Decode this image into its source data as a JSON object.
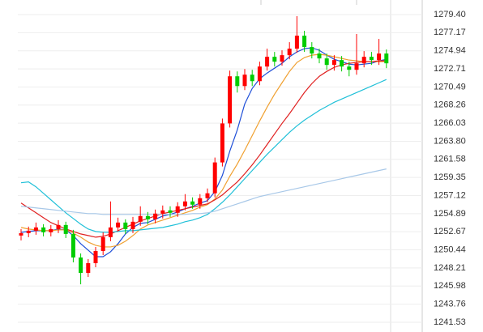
{
  "chart_data": {
    "type": "candlestick",
    "up_color": "#ff0000",
    "down_color": "#00cc00",
    "open": [
      1252.2,
      1252.5,
      1252.8,
      1253.2,
      1252.6,
      1253.0,
      1253.5,
      1252.4,
      1249.5,
      1247.6,
      1248.8,
      1250.3,
      1252.0,
      1253.2,
      1253.8,
      1253.0,
      1253.9,
      1254.6,
      1254.2,
      1254.9,
      1255.3,
      1255.0,
      1255.8,
      1256.4,
      1256.0,
      1256.8,
      1257.4,
      1261.2,
      1266.0,
      1271.8,
      1270.6,
      1272.0,
      1271.2,
      1273.0,
      1274.2,
      1273.6,
      1274.4,
      1275.2,
      1276.8,
      1275.4,
      1274.6,
      1274.0,
      1273.2,
      1273.8,
      1273.0,
      1272.6,
      1273.4,
      1274.2,
      1273.8,
      1274.6
    ],
    "high": [
      1253.0,
      1253.3,
      1253.8,
      1253.6,
      1253.5,
      1254.1,
      1253.9,
      1252.9,
      1250.0,
      1249.3,
      1250.8,
      1252.6,
      1256.4,
      1254.4,
      1254.2,
      1254.5,
      1255.8,
      1255.1,
      1255.4,
      1255.9,
      1255.8,
      1256.3,
      1257.3,
      1256.9,
      1257.3,
      1258.0,
      1261.8,
      1266.6,
      1272.5,
      1272.4,
      1272.7,
      1272.6,
      1273.6,
      1275.2,
      1274.8,
      1275.0,
      1276.0,
      1279.2,
      1277.4,
      1276.0,
      1275.2,
      1274.6,
      1274.4,
      1274.3,
      1273.6,
      1277.0,
      1274.9,
      1274.8,
      1276.4,
      1275.1
    ],
    "low": [
      1251.6,
      1252.0,
      1252.3,
      1252.1,
      1252.1,
      1252.5,
      1251.9,
      1248.9,
      1246.2,
      1247.1,
      1248.3,
      1249.8,
      1251.5,
      1252.7,
      1252.4,
      1252.5,
      1253.4,
      1253.6,
      1253.7,
      1254.3,
      1254.5,
      1254.5,
      1255.3,
      1255.5,
      1255.5,
      1256.3,
      1256.9,
      1260.7,
      1265.5,
      1269.8,
      1270.1,
      1270.6,
      1270.7,
      1272.5,
      1273.0,
      1273.1,
      1273.9,
      1274.7,
      1274.8,
      1274.0,
      1273.4,
      1272.6,
      1272.5,
      1272.4,
      1271.8,
      1272.0,
      1272.9,
      1273.2,
      1273.2,
      1272.8
    ],
    "close": [
      1252.5,
      1252.8,
      1253.2,
      1252.6,
      1253.0,
      1253.5,
      1252.4,
      1249.5,
      1247.6,
      1248.8,
      1250.3,
      1252.0,
      1253.2,
      1253.8,
      1253.0,
      1253.9,
      1254.6,
      1254.2,
      1254.9,
      1255.3,
      1255.0,
      1255.8,
      1256.4,
      1256.0,
      1256.8,
      1257.4,
      1261.2,
      1266.0,
      1271.8,
      1270.6,
      1272.0,
      1271.2,
      1273.0,
      1274.2,
      1273.6,
      1274.4,
      1275.2,
      1276.8,
      1275.4,
      1274.6,
      1274.0,
      1273.2,
      1273.8,
      1273.0,
      1272.6,
      1273.4,
      1274.2,
      1273.8,
      1274.6,
      1273.4
    ],
    "series": [
      {
        "color": "#1f4fd8",
        "values": [
          1252.6,
          1252.7,
          1252.8,
          1252.8,
          1252.8,
          1253.0,
          1252.9,
          1252.2,
          1251.2,
          1250.4,
          1249.6,
          1249.6,
          1250.2,
          1251.2,
          1252.4,
          1253.2,
          1253.7,
          1253.8,
          1254.2,
          1254.6,
          1254.8,
          1255.1,
          1255.5,
          1255.8,
          1256.2,
          1256.5,
          1257.6,
          1259.6,
          1262.6,
          1265.2,
          1268.4,
          1270.3,
          1271.5,
          1272.2,
          1272.8,
          1273.4,
          1274.2,
          1274.8,
          1275.2,
          1275.3,
          1275.0,
          1274.4,
          1273.9,
          1273.6,
          1273.3,
          1273.2,
          1273.3,
          1273.4,
          1273.7,
          1273.9
        ]
      },
      {
        "color": "#f0a030",
        "values": [
          1253.2,
          1253.0,
          1252.9,
          1252.8,
          1252.8,
          1252.9,
          1252.9,
          1252.5,
          1252.0,
          1251.4,
          1251.0,
          1250.8,
          1250.8,
          1251.0,
          1251.5,
          1252.2,
          1253.0,
          1253.5,
          1253.8,
          1254.1,
          1254.4,
          1254.7,
          1255.0,
          1255.3,
          1255.7,
          1256.0,
          1256.7,
          1257.8,
          1259.5,
          1261.0,
          1262.7,
          1264.5,
          1266.3,
          1268.0,
          1269.6,
          1271.0,
          1272.4,
          1273.5,
          1274.1,
          1274.4,
          1274.5,
          1274.4,
          1274.2,
          1274.0,
          1273.8,
          1273.7,
          1273.6,
          1273.6,
          1273.6,
          1273.6
        ]
      },
      {
        "color": "#e02020",
        "values": [
          1256.2,
          1255.6,
          1255.0,
          1254.4,
          1253.8,
          1253.4,
          1253.0,
          1252.7,
          1252.4,
          1252.2,
          1252.0,
          1252.1,
          1252.4,
          1252.8,
          1253.2,
          1253.6,
          1254.0,
          1254.3,
          1254.6,
          1254.9,
          1255.1,
          1255.3,
          1255.5,
          1255.7,
          1255.9,
          1256.1,
          1256.6,
          1257.2,
          1258.0,
          1258.8,
          1259.8,
          1260.9,
          1262.1,
          1263.4,
          1264.7,
          1266.0,
          1267.2,
          1268.5,
          1269.8,
          1270.9,
          1271.8,
          1272.4,
          1272.9,
          1273.2,
          1273.4,
          1273.5,
          1273.6,
          1273.6,
          1273.7,
          1273.7
        ]
      },
      {
        "color": "#20c0d8",
        "values": [
          1258.7,
          1258.8,
          1258.2,
          1257.4,
          1256.6,
          1255.8,
          1255.0,
          1254.3,
          1253.6,
          1253.0,
          1252.7,
          1252.6,
          1252.6,
          1252.7,
          1252.8,
          1252.8,
          1252.9,
          1253.0,
          1253.1,
          1253.2,
          1253.4,
          1253.6,
          1253.9,
          1254.1,
          1254.4,
          1254.8,
          1255.5,
          1256.3,
          1257.2,
          1258.2,
          1259.2,
          1260.2,
          1261.2,
          1262.2,
          1263.1,
          1264.0,
          1264.9,
          1265.7,
          1266.4,
          1267.0,
          1267.6,
          1268.1,
          1268.6,
          1269.0,
          1269.4,
          1269.8,
          1270.2,
          1270.6,
          1271.0,
          1271.4
        ]
      },
      {
        "color": "#a8c8e8",
        "values": [
          1255.8,
          1255.7,
          1255.6,
          1255.5,
          1255.4,
          1255.3,
          1255.2,
          1255.1,
          1255.0,
          1254.9,
          1254.9,
          1254.8,
          1254.8,
          1254.8,
          1254.8,
          1254.8,
          1254.8,
          1254.8,
          1254.8,
          1254.8,
          1254.8,
          1254.8,
          1254.8,
          1254.9,
          1254.9,
          1255.0,
          1255.2,
          1255.5,
          1255.8,
          1256.1,
          1256.4,
          1256.7,
          1257.0,
          1257.2,
          1257.4,
          1257.6,
          1257.8,
          1258.0,
          1258.2,
          1258.4,
          1258.6,
          1258.8,
          1259.0,
          1259.2,
          1259.4,
          1259.6,
          1259.8,
          1260.0,
          1260.2,
          1260.4
        ]
      }
    ],
    "ylim": [
      1240.33,
      1281.19
    ],
    "yticks": [
      {
        "value": 1279.4,
        "label": "1279.40"
      },
      {
        "value": 1277.17,
        "label": "1277.17"
      },
      {
        "value": 1274.94,
        "label": "1274.94"
      },
      {
        "value": 1272.71,
        "label": "1272.71"
      },
      {
        "value": 1270.49,
        "label": "1270.49"
      },
      {
        "value": 1268.26,
        "label": "1268.26"
      },
      {
        "value": 1266.03,
        "label": "1266.03"
      },
      {
        "value": 1263.8,
        "label": "1263.80"
      },
      {
        "value": 1261.58,
        "label": "1261.58"
      },
      {
        "value": 1259.35,
        "label": "1259.35"
      },
      {
        "value": 1257.12,
        "label": "1257.12"
      },
      {
        "value": 1254.89,
        "label": "1254.89"
      },
      {
        "value": 1252.67,
        "label": "1252.67"
      },
      {
        "value": 1250.44,
        "label": "1250.44"
      },
      {
        "value": 1248.21,
        "label": "1248.21"
      },
      {
        "value": 1245.98,
        "label": "1245.98"
      },
      {
        "value": 1243.76,
        "label": "1243.76"
      },
      {
        "value": 1241.53,
        "label": "1241.53"
      }
    ],
    "grid": true
  }
}
